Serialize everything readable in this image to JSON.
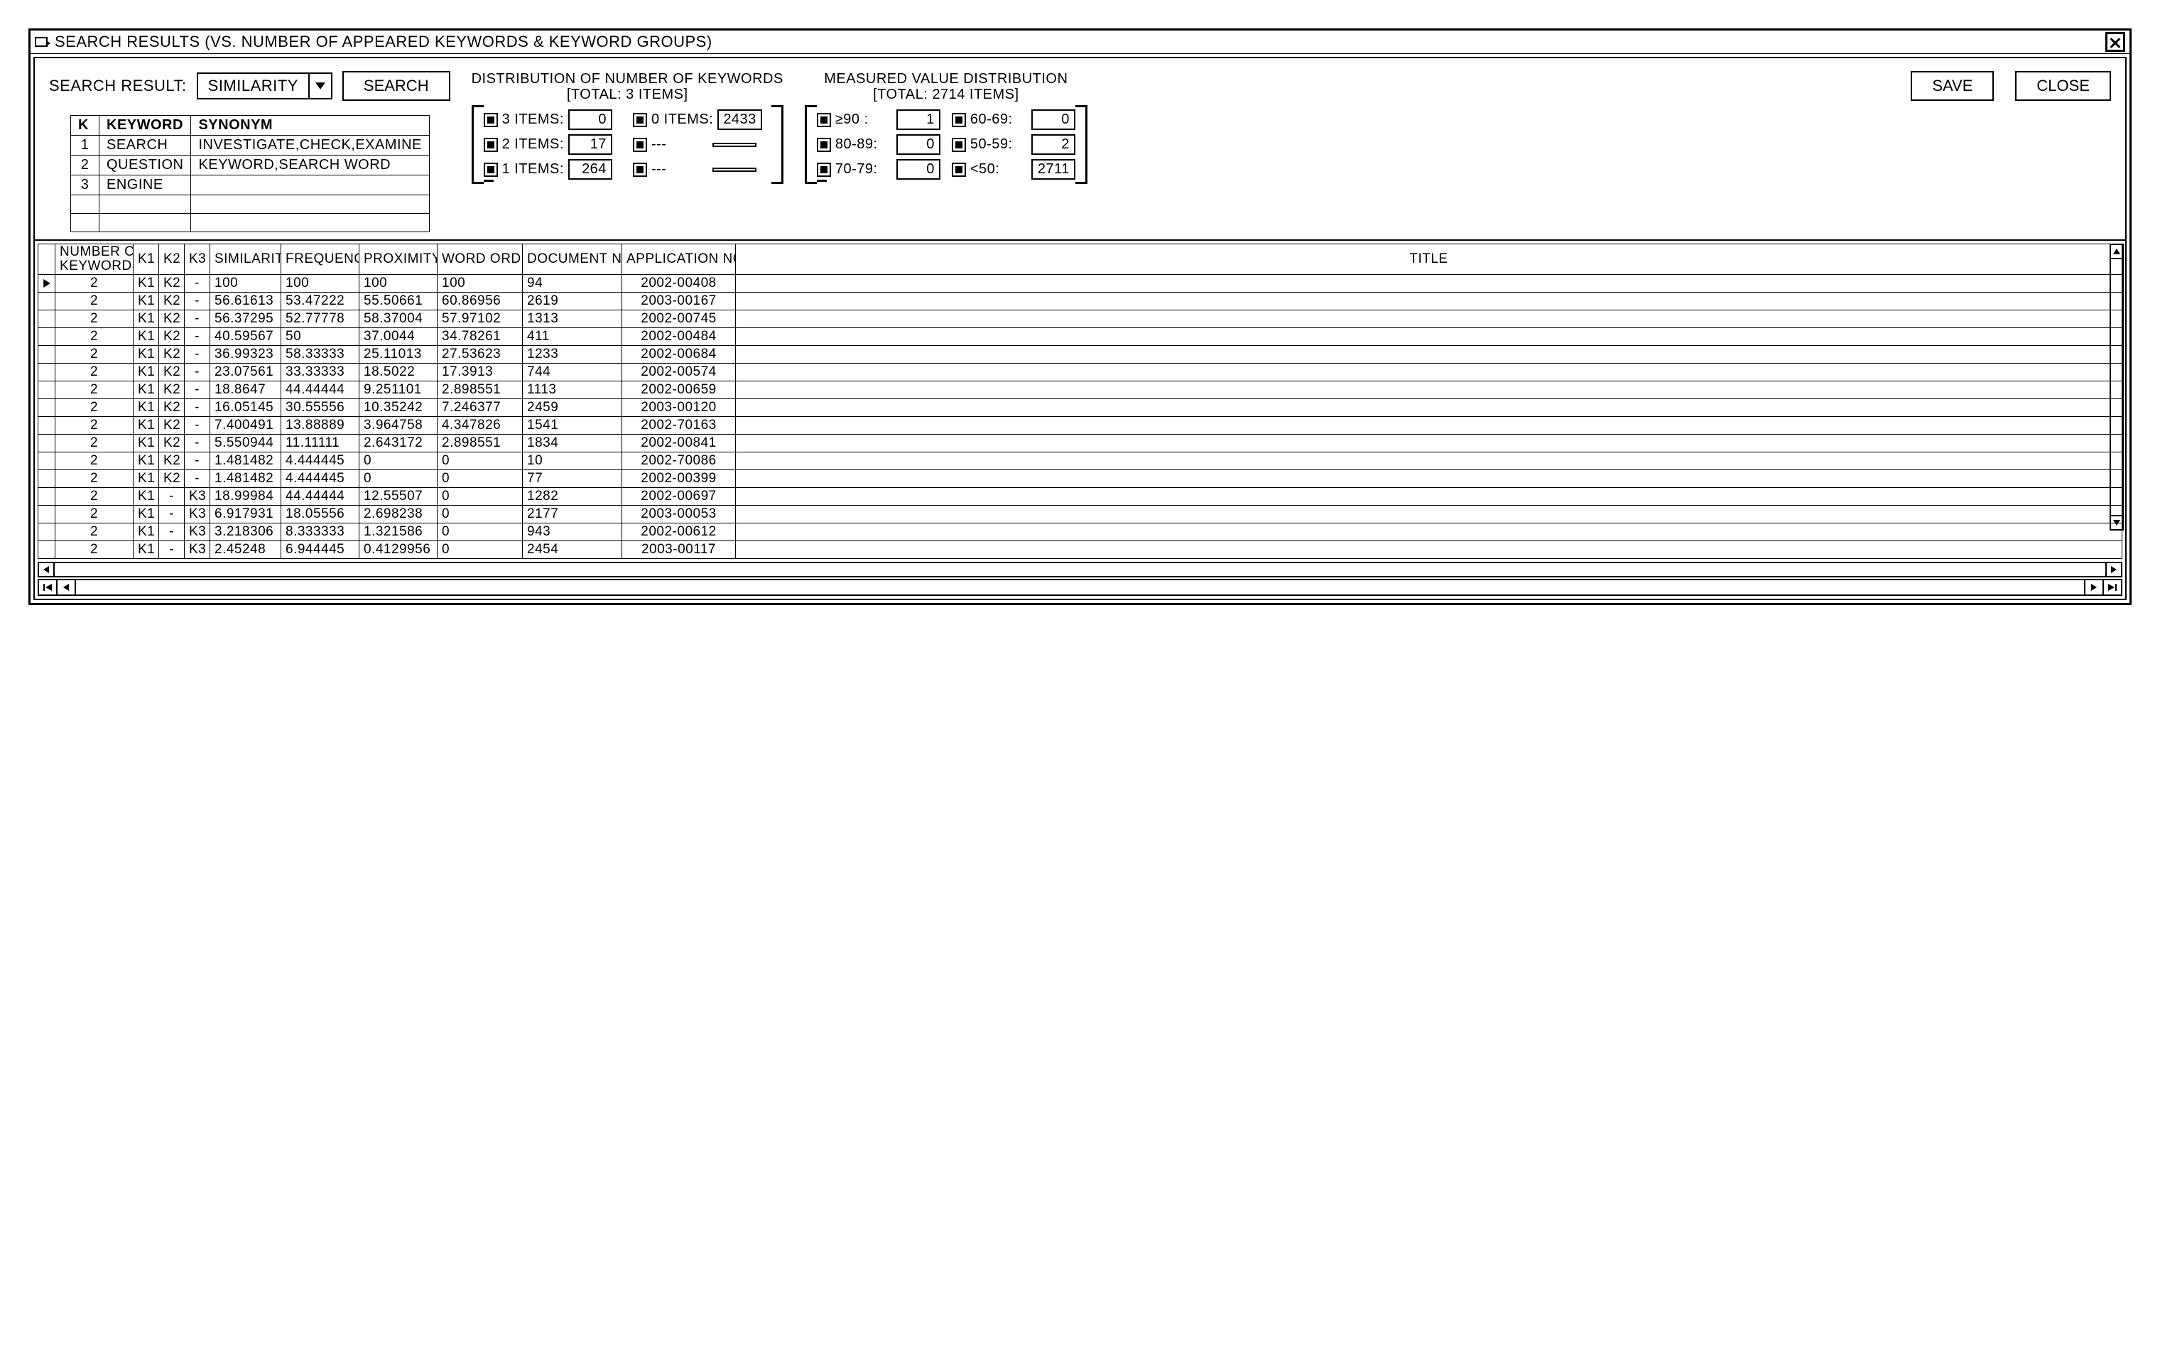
{
  "window": {
    "title": "SEARCH RESULTS (VS. NUMBER OF APPEARED KEYWORDS & KEYWORD GROUPS)"
  },
  "controls": {
    "search_result_label": "SEARCH RESULT:",
    "dropdown_value": "SIMILARITY",
    "search_btn": "SEARCH",
    "save_btn": "SAVE",
    "close_btn": "CLOSE"
  },
  "keyword_table": {
    "headers": {
      "k": "K",
      "keyword": "KEYWORD",
      "synonym": "SYNONYM"
    },
    "rows": [
      {
        "k": "1",
        "keyword": "SEARCH",
        "synonym": "INVESTIGATE,CHECK,EXAMINE"
      },
      {
        "k": "2",
        "keyword": "QUESTION",
        "synonym": "KEYWORD,SEARCH WORD"
      },
      {
        "k": "3",
        "keyword": "ENGINE",
        "synonym": ""
      },
      {
        "k": "",
        "keyword": "",
        "synonym": ""
      },
      {
        "k": "",
        "keyword": "",
        "synonym": ""
      }
    ]
  },
  "dist_keywords": {
    "title1": "DISTRIBUTION OF NUMBER OF KEYWORDS",
    "title2": "[TOTAL: 3 ITEMS]",
    "cells": [
      {
        "label": "3 ITEMS:",
        "value": "0"
      },
      {
        "label": "0 ITEMS:",
        "value": "2433"
      },
      {
        "label": "2 ITEMS:",
        "value": "17"
      },
      {
        "label": "---",
        "value": ""
      },
      {
        "label": "1 ITEMS:",
        "value": "264"
      },
      {
        "label": "---",
        "value": ""
      }
    ]
  },
  "dist_measured": {
    "title1": "MEASURED VALUE DISTRIBUTION",
    "title2": "[TOTAL: 2714 ITEMS]",
    "cells": [
      {
        "label": "≥90 :",
        "value": "1"
      },
      {
        "label": "60-69:",
        "value": "0"
      },
      {
        "label": "80-89:",
        "value": "0"
      },
      {
        "label": "50-59:",
        "value": "2"
      },
      {
        "label": "70-79:",
        "value": "0"
      },
      {
        "label": "<50:",
        "value": "2711"
      }
    ]
  },
  "results": {
    "headers": {
      "num_kw": "NUMBER OF\nKEYWORDS",
      "k1": "K1",
      "k2": "K2",
      "k3": "K3",
      "similarity": "SIMILARITY",
      "frequency": "FREQUENCY",
      "proximity": "PROXIMITY",
      "word_order": "WORD ORDER",
      "doc_no": "DOCUMENT NO.",
      "app_no": "APPLICATION NO.",
      "title": "TITLE"
    },
    "rows": [
      {
        "sel": true,
        "nk": "2",
        "k1": "K1",
        "k2": "K2",
        "k3": "-",
        "sim": "100",
        "freq": "100",
        "prox": "100",
        "wo": "100",
        "doc": "94",
        "app": "2002-00408",
        "title": ""
      },
      {
        "nk": "2",
        "k1": "K1",
        "k2": "K2",
        "k3": "-",
        "sim": "56.61613",
        "freq": "53.47222",
        "prox": "55.50661",
        "wo": "60.86956",
        "doc": "2619",
        "app": "2003-00167",
        "title": ""
      },
      {
        "nk": "2",
        "k1": "K1",
        "k2": "K2",
        "k3": "-",
        "sim": "56.37295",
        "freq": "52.77778",
        "prox": "58.37004",
        "wo": "57.97102",
        "doc": "1313",
        "app": "2002-00745",
        "title": ""
      },
      {
        "nk": "2",
        "k1": "K1",
        "k2": "K2",
        "k3": "-",
        "sim": "40.59567",
        "freq": "50",
        "prox": "37.0044",
        "wo": "34.78261",
        "doc": "411",
        "app": "2002-00484",
        "title": ""
      },
      {
        "nk": "2",
        "k1": "K1",
        "k2": "K2",
        "k3": "-",
        "sim": "36.99323",
        "freq": "58.33333",
        "prox": "25.11013",
        "wo": "27.53623",
        "doc": "1233",
        "app": "2002-00684",
        "title": ""
      },
      {
        "nk": "2",
        "k1": "K1",
        "k2": "K2",
        "k3": "-",
        "sim": "23.07561",
        "freq": "33.33333",
        "prox": "18.5022",
        "wo": "17.3913",
        "doc": "744",
        "app": "2002-00574",
        "title": ""
      },
      {
        "nk": "2",
        "k1": "K1",
        "k2": "K2",
        "k3": "-",
        "sim": "18.8647",
        "freq": "44.44444",
        "prox": "9.251101",
        "wo": "2.898551",
        "doc": "1113",
        "app": "2002-00659",
        "title": ""
      },
      {
        "nk": "2",
        "k1": "K1",
        "k2": "K2",
        "k3": "-",
        "sim": "16.05145",
        "freq": "30.55556",
        "prox": "10.35242",
        "wo": "7.246377",
        "doc": "2459",
        "app": "2003-00120",
        "title": ""
      },
      {
        "nk": "2",
        "k1": "K1",
        "k2": "K2",
        "k3": "-",
        "sim": "7.400491",
        "freq": "13.88889",
        "prox": "3.964758",
        "wo": "4.347826",
        "doc": "1541",
        "app": "2002-70163",
        "title": ""
      },
      {
        "nk": "2",
        "k1": "K1",
        "k2": "K2",
        "k3": "-",
        "sim": "5.550944",
        "freq": "11.11111",
        "prox": "2.643172",
        "wo": "2.898551",
        "doc": "1834",
        "app": "2002-00841",
        "title": ""
      },
      {
        "nk": "2",
        "k1": "K1",
        "k2": "K2",
        "k3": "-",
        "sim": "1.481482",
        "freq": "4.444445",
        "prox": "0",
        "wo": "0",
        "doc": "10",
        "app": "2002-70086",
        "title": ""
      },
      {
        "nk": "2",
        "k1": "K1",
        "k2": "K2",
        "k3": "-",
        "sim": "1.481482",
        "freq": "4.444445",
        "prox": "0",
        "wo": "0",
        "doc": "77",
        "app": "2002-00399",
        "title": ""
      },
      {
        "nk": "2",
        "k1": "K1",
        "k2": "-",
        "k3": "K3",
        "sim": "18.99984",
        "freq": "44.44444",
        "prox": "12.55507",
        "wo": "0",
        "doc": "1282",
        "app": "2002-00697",
        "title": ""
      },
      {
        "nk": "2",
        "k1": "K1",
        "k2": "-",
        "k3": "K3",
        "sim": "6.917931",
        "freq": "18.05556",
        "prox": "2.698238",
        "wo": "0",
        "doc": "2177",
        "app": "2003-00053",
        "title": ""
      },
      {
        "nk": "2",
        "k1": "K1",
        "k2": "-",
        "k3": "K3",
        "sim": "3.218306",
        "freq": "8.333333",
        "prox": "1.321586",
        "wo": "0",
        "doc": "943",
        "app": "2002-00612",
        "title": ""
      },
      {
        "nk": "2",
        "k1": "K1",
        "k2": "-",
        "k3": "K3",
        "sim": "2.45248",
        "freq": "6.944445",
        "prox": "0.4129956",
        "wo": "0",
        "doc": "2454",
        "app": "2003-00117",
        "title": ""
      }
    ]
  }
}
